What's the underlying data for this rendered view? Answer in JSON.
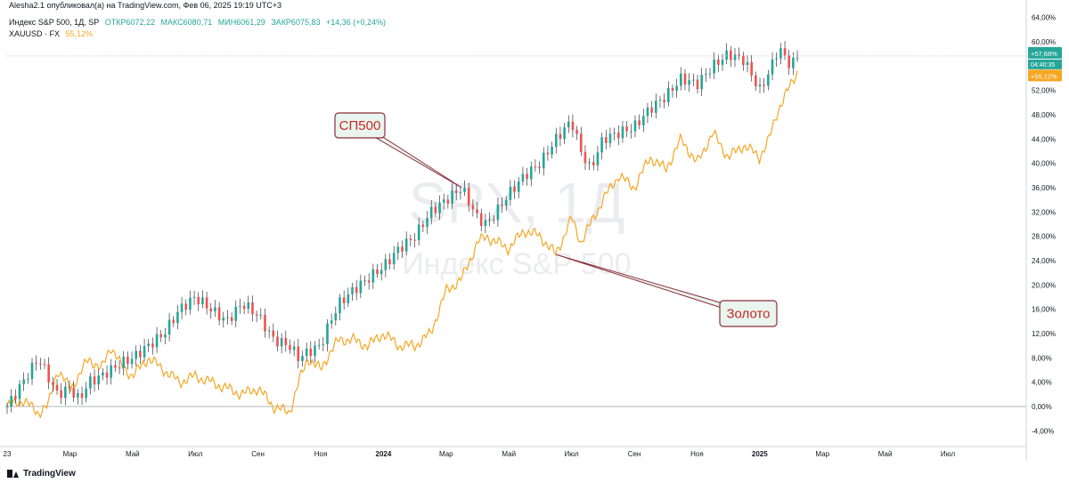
{
  "header": {
    "publisher": "Alesha2.1 опубликовал(а) на TradingView.com, Фев 06, 2025 19:19 UTC+3",
    "symbol": "Индекс S&P 500, 1Д, SP",
    "open": "ОТКР6072,22",
    "high": "МАКС6080,71",
    "low": "МИН6061,29",
    "close": "ЗАКР6075,83",
    "change": "+14,36 (+0,24%)",
    "compare_symbol": "XAUUSD · FX",
    "compare_value": "55,12%"
  },
  "watermark": {
    "symbol": "SPX, 1Д",
    "name": "Индекс S&P 500"
  },
  "price_labels": {
    "spx_pct": "+57,68%",
    "countdown": "04:40:35",
    "gold_pct": "+55,12%"
  },
  "footer": {
    "brand": "TradingView"
  },
  "colors": {
    "spx_up": "#26a69a",
    "spx_down": "#ef5350",
    "spx_wick": "#131722",
    "gold": "#f5a623",
    "callout_border": "#8b2f3a",
    "callout_bg": "#e9f5ee",
    "callout_text": "#c62828"
  },
  "chart_data": {
    "type": "line",
    "y_unit": "%",
    "ylim": [
      -6,
      66
    ],
    "y_ticks": [
      "-4,00%",
      "0,00%",
      "4,00%",
      "8,00%",
      "12,00%",
      "16,00%",
      "20,00%",
      "24,00%",
      "28,00%",
      "32,00%",
      "36,00%",
      "40,00%",
      "44,00%",
      "48,00%",
      "52,00%",
      "56,00%",
      "60,00%",
      "64,00%"
    ],
    "y_tick_values": [
      -4,
      0,
      4,
      8,
      12,
      16,
      20,
      24,
      28,
      32,
      36,
      40,
      44,
      48,
      52,
      56,
      60,
      64
    ],
    "x_ticks": [
      "23",
      "Мар",
      "Май",
      "Июл",
      "Сен",
      "Ноя",
      "2024",
      "Мар",
      "Май",
      "Июл",
      "Сен",
      "Ноя",
      "2025",
      "Мар",
      "Май",
      "Июл"
    ],
    "x_tick_months": [
      0,
      2,
      4,
      6,
      8,
      10,
      12,
      14,
      16,
      18,
      20,
      22,
      24,
      26,
      28,
      30
    ],
    "xlim_months": [
      0,
      32.5
    ],
    "grid": false,
    "series": [
      {
        "key": "spx",
        "style": "candles",
        "months": [
          0,
          0.5,
          1,
          1.3,
          1.6,
          2,
          2.3,
          2.6,
          3,
          3.3,
          3.6,
          4,
          4.5,
          5,
          5.5,
          6,
          6.5,
          7,
          7.5,
          8,
          8.5,
          9,
          9.3,
          9.6,
          10,
          10.3,
          10.6,
          11,
          11.5,
          12,
          12.5,
          13,
          13.5,
          14,
          14.5,
          15,
          15.3,
          15.6,
          16,
          16.5,
          17,
          17.5,
          18,
          18.3,
          18.6,
          19,
          19.5,
          20,
          20.5,
          21,
          21.5,
          22,
          22.5,
          23,
          23.5,
          24,
          24.3,
          24.6,
          25,
          25.2
        ],
        "values": [
          0,
          4,
          8,
          5,
          2,
          3,
          1,
          4,
          5,
          6,
          7,
          8,
          10,
          12,
          16,
          18,
          16,
          14,
          17,
          15,
          11,
          10,
          8,
          9,
          10,
          14,
          17,
          19,
          21,
          23,
          26,
          28,
          32,
          34,
          36,
          31,
          30,
          32,
          35,
          38,
          40,
          44,
          47,
          42,
          39,
          44,
          45,
          46,
          49,
          51,
          54,
          53,
          56,
          58,
          57,
          52,
          55,
          59,
          56,
          57.68
        ]
      },
      {
        "key": "gold",
        "style": "line",
        "months": [
          0,
          0.5,
          1,
          1.3,
          1.6,
          2,
          2.3,
          2.6,
          3,
          3.3,
          3.6,
          4,
          4.5,
          5,
          5.5,
          6,
          6.5,
          7,
          7.5,
          8,
          8.5,
          9,
          9.3,
          9.6,
          10,
          10.3,
          10.6,
          11,
          11.5,
          12,
          12.5,
          13,
          13.5,
          14,
          14.5,
          15,
          15.3,
          15.6,
          16,
          16.5,
          17,
          17.5,
          18,
          18.3,
          18.6,
          19,
          19.5,
          20,
          20.5,
          21,
          21.5,
          22,
          22.5,
          23,
          23.5,
          24,
          24.3,
          24.6,
          25,
          25.2
        ],
        "values": [
          0,
          1,
          -1,
          0,
          6,
          3,
          5,
          8,
          6,
          10,
          7,
          5,
          8,
          6,
          4,
          5,
          4,
          3,
          2,
          3,
          0,
          -1,
          4,
          8,
          6,
          9,
          11,
          11,
          10,
          12,
          10,
          10,
          12,
          19,
          21,
          27,
          28,
          27,
          26,
          29,
          28,
          25,
          31,
          27,
          30,
          34,
          38,
          36,
          41,
          39,
          44,
          40,
          45,
          41,
          43,
          41,
          44,
          49,
          53,
          55.12
        ]
      }
    ],
    "annotations": [
      {
        "label": "СП500",
        "target_series": "spx",
        "target_month": 14.5
      },
      {
        "label": "Золото",
        "target_series": "gold",
        "target_month": 17.5
      }
    ]
  }
}
